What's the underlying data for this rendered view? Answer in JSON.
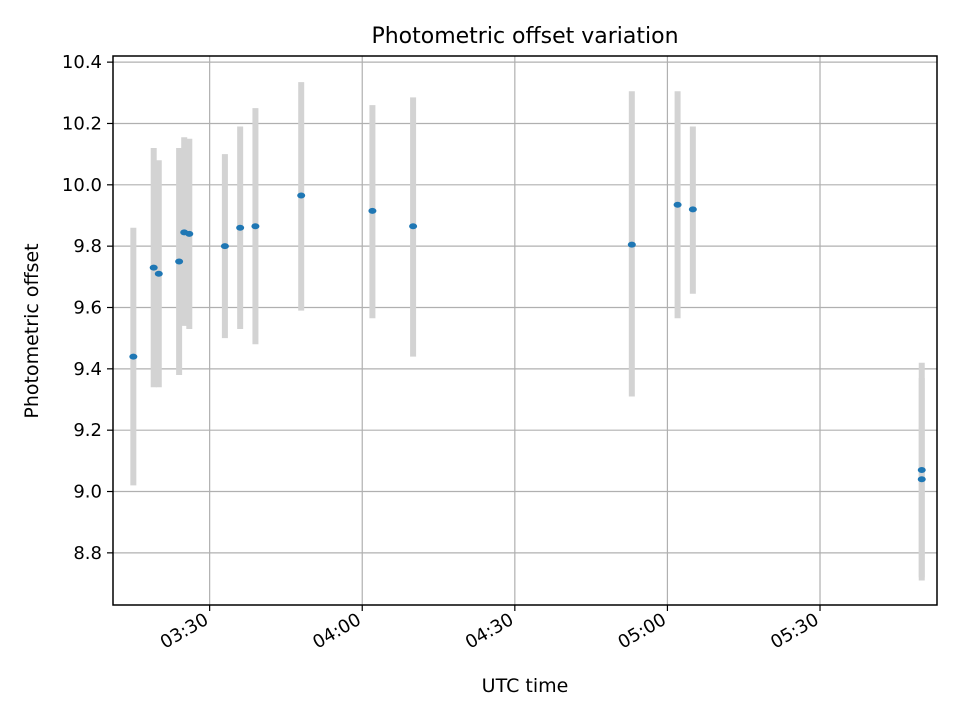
{
  "chart_data": {
    "type": "scatter",
    "title": "Photometric offset variation",
    "xlabel": "UTC time",
    "ylabel": "Photometric offset",
    "x_ticks": [
      "03:30",
      "04:00",
      "04:30",
      "05:00",
      "05:30"
    ],
    "y_ticks": [
      "8.8",
      "9.0",
      "9.2",
      "9.4",
      "9.6",
      "9.8",
      "10.0",
      "10.2",
      "10.4"
    ],
    "xlim": [
      "03:11",
      "05:53"
    ],
    "ylim": [
      8.63,
      10.42
    ],
    "grid": true,
    "marker_color": "#1f77b4",
    "errorbar_color": "#d3d3d3",
    "points": [
      {
        "x": "03:15",
        "y": 9.44,
        "low": 9.02,
        "high": 9.86
      },
      {
        "x": "03:19",
        "y": 9.73,
        "low": 9.34,
        "high": 10.12
      },
      {
        "x": "03:20",
        "y": 9.71,
        "low": 9.34,
        "high": 10.08
      },
      {
        "x": "03:24",
        "y": 9.75,
        "low": 9.38,
        "high": 10.12
      },
      {
        "x": "03:25",
        "y": 9.845,
        "low": 9.54,
        "high": 10.155
      },
      {
        "x": "03:26",
        "y": 9.84,
        "low": 9.53,
        "high": 10.15
      },
      {
        "x": "03:33",
        "y": 9.8,
        "low": 9.5,
        "high": 10.1
      },
      {
        "x": "03:36",
        "y": 9.86,
        "low": 9.53,
        "high": 10.19
      },
      {
        "x": "03:39",
        "y": 9.865,
        "low": 9.48,
        "high": 10.25
      },
      {
        "x": "03:48",
        "y": 9.965,
        "low": 9.59,
        "high": 10.335
      },
      {
        "x": "04:02",
        "y": 9.915,
        "low": 9.565,
        "high": 10.26
      },
      {
        "x": "04:10",
        "y": 9.865,
        "low": 9.44,
        "high": 10.285
      },
      {
        "x": "04:53",
        "y": 9.805,
        "low": 9.31,
        "high": 10.305
      },
      {
        "x": "05:02",
        "y": 9.935,
        "low": 9.565,
        "high": 10.305
      },
      {
        "x": "05:05",
        "y": 9.92,
        "low": 9.645,
        "high": 10.19
      },
      {
        "x": "05:50",
        "y": 9.07,
        "low": 8.72,
        "high": 9.42
      },
      {
        "x": "05:50",
        "y": 9.04,
        "low": 8.71,
        "high": 9.37
      }
    ]
  }
}
